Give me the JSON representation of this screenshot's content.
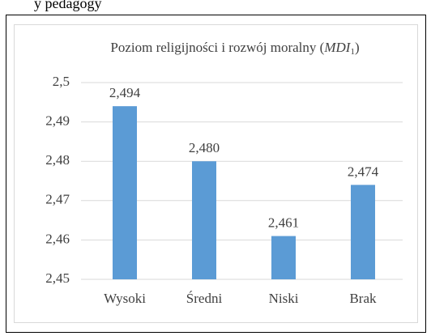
{
  "page_text": "y pedagogy",
  "chart_data": {
    "type": "bar",
    "title": {
      "text": "Poziom religijności i rozwój moralny (",
      "italic": "MDI",
      "subscript": "1",
      "close": ")"
    },
    "categories": [
      "Wysoki",
      "Średni",
      "Niski",
      "Brak"
    ],
    "values": [
      2.494,
      2.48,
      2.461,
      2.474
    ],
    "value_labels": [
      "2,494",
      "2,480",
      "2,461",
      "2,474"
    ],
    "color": "#5b9bd5",
    "ylim": [
      2.45,
      2.5
    ],
    "yticks": [
      {
        "value": 2.45,
        "label": "2,45"
      },
      {
        "value": 2.46,
        "label": "2,46"
      },
      {
        "value": 2.47,
        "label": "2,47"
      },
      {
        "value": 2.48,
        "label": "2,48"
      },
      {
        "value": 2.49,
        "label": "2,49"
      },
      {
        "value": 2.5,
        "label": "2,5"
      }
    ],
    "grid": true
  }
}
